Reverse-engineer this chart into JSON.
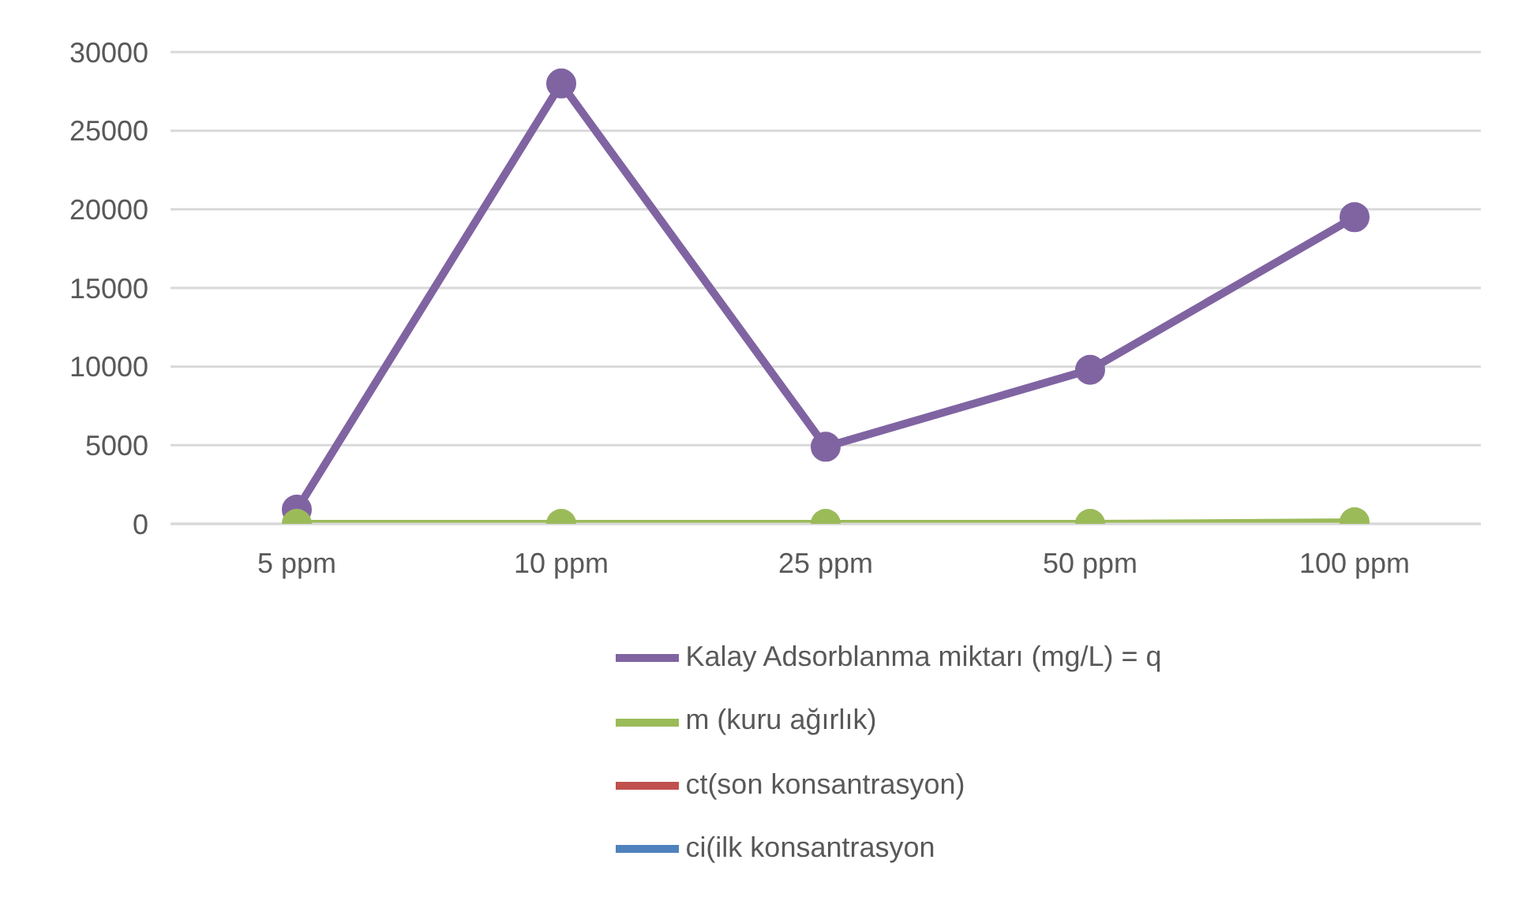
{
  "chart_data": {
    "type": "line",
    "categories": [
      "5 ppm",
      "10 ppm",
      "25 ppm",
      "50 ppm",
      "100 ppm"
    ],
    "series": [
      {
        "name": "Kalay Adsorblanma miktarı (mg/L) = q",
        "color": "#8064a2",
        "values": [
          900,
          28000,
          4900,
          9800,
          19500
        ]
      },
      {
        "name": "m (kuru ağırlık)",
        "color": "#9bbb59",
        "values": [
          0,
          0,
          0,
          0,
          100
        ]
      },
      {
        "name": "ct(son konsantrasyon)",
        "color": "#c0504d",
        "values": [
          null,
          null,
          null,
          null,
          null
        ]
      },
      {
        "name": "ci(ilk konsantrasyon",
        "color": "#4f81bd",
        "values": [
          null,
          null,
          null,
          null,
          null
        ]
      }
    ],
    "ylim": [
      0,
      30000
    ],
    "yticks": [
      0,
      5000,
      10000,
      15000,
      20000,
      25000,
      30000
    ],
    "grid": "y",
    "legend": "bottom",
    "marker": "circle",
    "line_style": "solid"
  }
}
